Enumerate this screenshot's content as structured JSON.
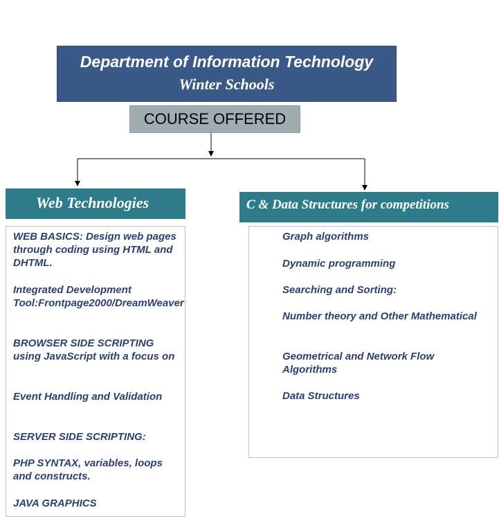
{
  "header": {
    "title": "Department of Information Technology",
    "subtitle": "Winter Schools"
  },
  "center_node": {
    "label": "COURSE OFFERED"
  },
  "branches": [
    {
      "title": "Web Technologies",
      "items": [
        " WEB BASICS: Design web pages through coding using HTML and DHTML.",
        "Integrated Development Tool:Frontpage2000/DreamWeaver",
        "BROWSER SIDE SCRIPTING using JavaScript with a focus on",
        " Event Handling and Validation",
        " SERVER SIDE SCRIPTING:",
        "PHP SYNTAX, variables, loops and constructs.",
        "JAVA GRAPHICS"
      ]
    },
    {
      "title": "C & Data Structures for competitions",
      "items": [
        "Graph algorithms",
        "Dynamic programming",
        "Searching and Sorting:",
        "Number theory and Other Mathematical",
        "Geometrical and Network Flow Algorithms",
        "Data Structures"
      ]
    }
  ],
  "colors": {
    "header_bg": "#3b5987",
    "course_bg": "#9fadb1",
    "branch_bg": "#2e7c8a",
    "item_text": "#2b3f6e"
  }
}
